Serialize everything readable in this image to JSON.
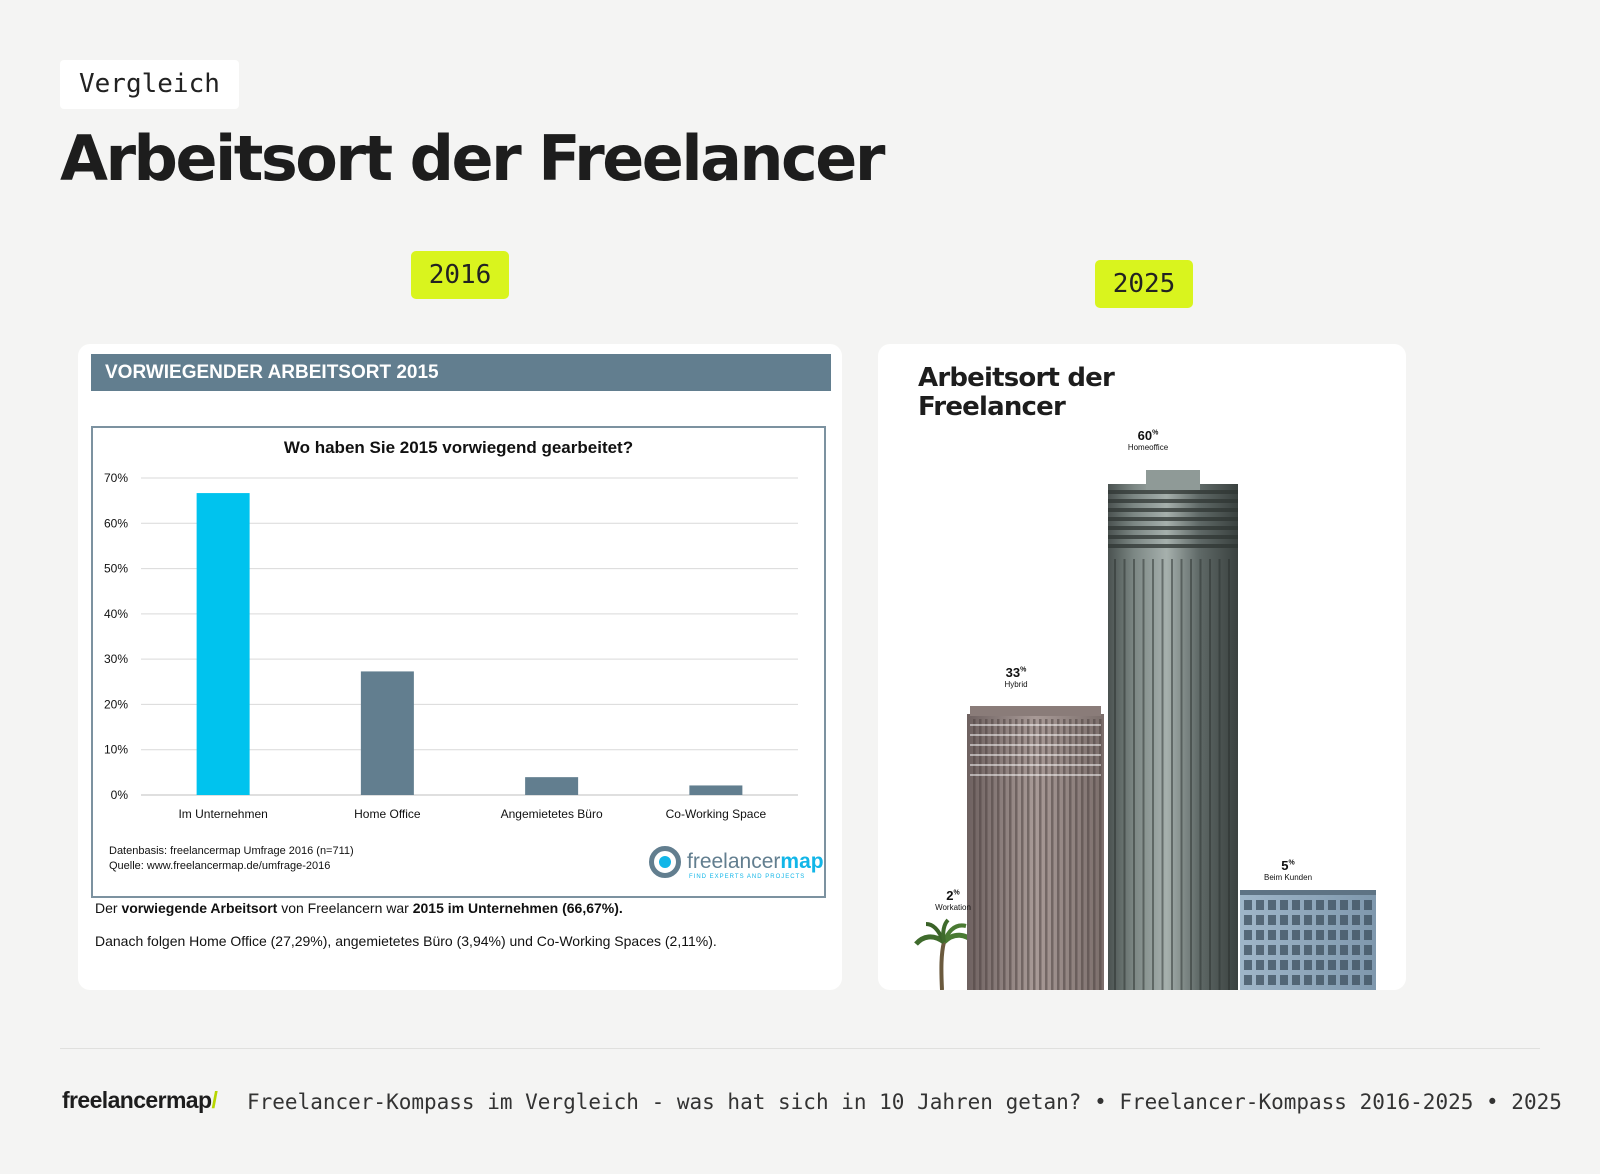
{
  "header": {
    "tag": "Vergleich",
    "title": "Arbeitsort der Freelancer"
  },
  "years": {
    "left": "2016",
    "right": "2025"
  },
  "left_panel": {
    "banner": "VORWIEGENDER ARBEITSORT 2015",
    "source_line1": "Datenbasis: freelancermap Umfrage 2016 (n=711)",
    "source_line2": "Quelle: www.freelancermap.de/umfrage-2016",
    "logo_word": "freelancer",
    "logo_word_bold": "map",
    "logo_tagline": "FIND EXPERTS AND PROJECTS",
    "caption1": {
      "a": "Der ",
      "b": "vorwiegende Arbeitsort",
      "c": " von Freelancern war ",
      "d": "2015 im Unternehmen (66,67%)."
    },
    "caption2": "Danach folgen Home Office (27,29%), angemietetes Büro (3,94%) und Co-Working Spaces (2,11%)."
  },
  "right_panel": {
    "title_line1": "Arbeitsort der",
    "title_line2": "Freelancer",
    "percent_sign": "%"
  },
  "chart_data": [
    {
      "type": "bar",
      "title": "Wo haben Sie 2015 vorwiegend gearbeitet?",
      "categories": [
        "Im Unternehmen",
        "Home Office",
        "Angemietetes Büro",
        "Co-Working Space"
      ],
      "values": [
        66.67,
        27.29,
        3.94,
        2.11
      ],
      "ylim": [
        0,
        70
      ],
      "yticks": [
        "0%",
        "10%",
        "20%",
        "30%",
        "40%",
        "50%",
        "60%",
        "70%"
      ],
      "ytick_values": [
        0,
        10,
        20,
        30,
        40,
        50,
        60,
        70
      ],
      "grid": true,
      "colors": [
        "#00c3ee",
        "#627e8f",
        "#627e8f",
        "#627e8f"
      ]
    },
    {
      "type": "bar",
      "title": "Arbeitsort der Freelancer",
      "categories": [
        "Workation",
        "Hybrid",
        "Homeoffice",
        "Beim Kunden"
      ],
      "values": [
        2,
        33,
        60,
        5
      ],
      "labels": [
        "2",
        "33",
        "60",
        "5"
      ]
    }
  ],
  "footer": {
    "logo": "freelancermap",
    "logo_slash": "/",
    "text": "Freelancer-Kompass im Vergleich - was hat sich in 10 Jahren getan? • Freelancer-Kompass 2016-2025 • 2025"
  }
}
